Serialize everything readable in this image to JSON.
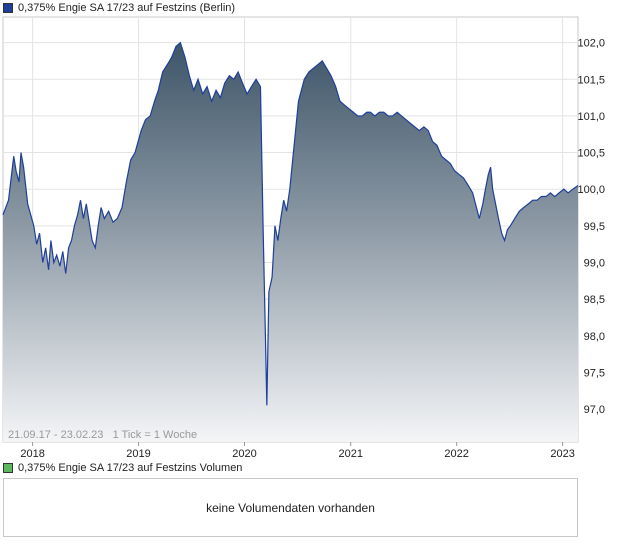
{
  "legend_main": {
    "label": "0,375% Engie SA 17/23 auf Festzins (Berlin)",
    "color": "#1f3f9a"
  },
  "legend_volume": {
    "label": "0,375% Engie SA 17/23 auf Festzins Volumen",
    "color": "#5cb85c"
  },
  "info_text": "21.09.17 - 23.02.23   1 Tick = 1 Woche",
  "volume_message": "keine Volumendaten vorhanden",
  "chart_data": {
    "type": "area",
    "title": "0,375% Engie SA 17/23 auf Festzins (Berlin)",
    "x_start": "2017-09-21",
    "x_end": "2023-02-23",
    "x_ticks": [
      {
        "label": "2018",
        "date": "2018-01-01"
      },
      {
        "label": "2019",
        "date": "2019-01-01"
      },
      {
        "label": "2020",
        "date": "2020-01-01"
      },
      {
        "label": "2021",
        "date": "2021-01-01"
      },
      {
        "label": "2022",
        "date": "2022-01-01"
      },
      {
        "label": "2023",
        "date": "2023-01-01"
      }
    ],
    "y_ticks": [
      "97,0",
      "97,5",
      "98,0",
      "98,5",
      "99,0",
      "99,5",
      "100,0",
      "100,5",
      "101,0",
      "101,5",
      "102,0"
    ],
    "ylim": [
      96.55,
      102.35
    ],
    "grid": true,
    "line_color": "#1f3f9a",
    "series": [
      {
        "points": [
          [
            "2017-09-21",
            99.65
          ],
          [
            "2017-10-10",
            99.85
          ],
          [
            "2017-10-28",
            100.45
          ],
          [
            "2017-11-05",
            100.25
          ],
          [
            "2017-11-15",
            100.1
          ],
          [
            "2017-11-22",
            100.5
          ],
          [
            "2017-12-01",
            100.3
          ],
          [
            "2017-12-15",
            99.8
          ],
          [
            "2018-01-05",
            99.5
          ],
          [
            "2018-01-15",
            99.25
          ],
          [
            "2018-01-25",
            99.4
          ],
          [
            "2018-02-05",
            99.0
          ],
          [
            "2018-02-15",
            99.2
          ],
          [
            "2018-02-25",
            98.9
          ],
          [
            "2018-03-05",
            99.3
          ],
          [
            "2018-03-15",
            99.0
          ],
          [
            "2018-03-25",
            99.1
          ],
          [
            "2018-04-05",
            98.95
          ],
          [
            "2018-04-15",
            99.15
          ],
          [
            "2018-04-25",
            98.85
          ],
          [
            "2018-05-05",
            99.2
          ],
          [
            "2018-05-15",
            99.3
          ],
          [
            "2018-05-25",
            99.5
          ],
          [
            "2018-06-05",
            99.65
          ],
          [
            "2018-06-15",
            99.85
          ],
          [
            "2018-06-25",
            99.6
          ],
          [
            "2018-07-05",
            99.8
          ],
          [
            "2018-07-15",
            99.55
          ],
          [
            "2018-07-25",
            99.3
          ],
          [
            "2018-08-05",
            99.2
          ],
          [
            "2018-08-15",
            99.5
          ],
          [
            "2018-08-25",
            99.75
          ],
          [
            "2018-09-05",
            99.6
          ],
          [
            "2018-09-20",
            99.7
          ],
          [
            "2018-10-05",
            99.55
          ],
          [
            "2018-10-20",
            99.6
          ],
          [
            "2018-11-05",
            99.75
          ],
          [
            "2018-11-20",
            100.1
          ],
          [
            "2018-12-05",
            100.4
          ],
          [
            "2018-12-20",
            100.5
          ],
          [
            "2019-01-10",
            100.8
          ],
          [
            "2019-01-25",
            100.95
          ],
          [
            "2019-02-10",
            101.0
          ],
          [
            "2019-02-25",
            101.2
          ],
          [
            "2019-03-10",
            101.35
          ],
          [
            "2019-03-25",
            101.6
          ],
          [
            "2019-04-10",
            101.7
          ],
          [
            "2019-04-25",
            101.8
          ],
          [
            "2019-05-10",
            101.95
          ],
          [
            "2019-05-25",
            102.0
          ],
          [
            "2019-06-10",
            101.8
          ],
          [
            "2019-06-25",
            101.55
          ],
          [
            "2019-07-10",
            101.35
          ],
          [
            "2019-07-25",
            101.5
          ],
          [
            "2019-08-10",
            101.3
          ],
          [
            "2019-08-25",
            101.4
          ],
          [
            "2019-09-10",
            101.2
          ],
          [
            "2019-09-25",
            101.35
          ],
          [
            "2019-10-10",
            101.25
          ],
          [
            "2019-10-25",
            101.45
          ],
          [
            "2019-11-10",
            101.55
          ],
          [
            "2019-11-25",
            101.5
          ],
          [
            "2019-12-10",
            101.6
          ],
          [
            "2019-12-25",
            101.45
          ],
          [
            "2020-01-10",
            101.3
          ],
          [
            "2020-01-25",
            101.4
          ],
          [
            "2020-02-10",
            101.5
          ],
          [
            "2020-02-25",
            101.4
          ],
          [
            "2020-03-05",
            99.5
          ],
          [
            "2020-03-12",
            98.2
          ],
          [
            "2020-03-18",
            97.05
          ],
          [
            "2020-03-25",
            98.6
          ],
          [
            "2020-04-05",
            98.8
          ],
          [
            "2020-04-15",
            99.5
          ],
          [
            "2020-04-25",
            99.3
          ],
          [
            "2020-05-05",
            99.6
          ],
          [
            "2020-05-15",
            99.85
          ],
          [
            "2020-05-25",
            99.7
          ],
          [
            "2020-06-05",
            100.0
          ],
          [
            "2020-06-20",
            100.6
          ],
          [
            "2020-07-05",
            101.2
          ],
          [
            "2020-07-25",
            101.5
          ],
          [
            "2020-08-10",
            101.6
          ],
          [
            "2020-08-25",
            101.65
          ],
          [
            "2020-09-10",
            101.7
          ],
          [
            "2020-09-25",
            101.75
          ],
          [
            "2020-10-10",
            101.65
          ],
          [
            "2020-10-25",
            101.55
          ],
          [
            "2020-11-10",
            101.4
          ],
          [
            "2020-11-25",
            101.2
          ],
          [
            "2020-12-10",
            101.15
          ],
          [
            "2020-12-25",
            101.1
          ],
          [
            "2021-01-10",
            101.05
          ],
          [
            "2021-01-25",
            101.0
          ],
          [
            "2021-02-10",
            101.0
          ],
          [
            "2021-02-25",
            101.05
          ],
          [
            "2021-03-10",
            101.05
          ],
          [
            "2021-03-25",
            101.0
          ],
          [
            "2021-04-10",
            101.05
          ],
          [
            "2021-04-25",
            101.05
          ],
          [
            "2021-05-10",
            101.0
          ],
          [
            "2021-05-25",
            101.0
          ],
          [
            "2021-06-10",
            101.05
          ],
          [
            "2021-06-25",
            101.0
          ],
          [
            "2021-07-10",
            100.95
          ],
          [
            "2021-07-25",
            100.9
          ],
          [
            "2021-08-10",
            100.85
          ],
          [
            "2021-08-25",
            100.8
          ],
          [
            "2021-09-10",
            100.85
          ],
          [
            "2021-09-25",
            100.8
          ],
          [
            "2021-10-10",
            100.65
          ],
          [
            "2021-10-25",
            100.6
          ],
          [
            "2021-11-10",
            100.45
          ],
          [
            "2021-11-25",
            100.4
          ],
          [
            "2021-12-10",
            100.35
          ],
          [
            "2021-12-25",
            100.25
          ],
          [
            "2022-01-10",
            100.2
          ],
          [
            "2022-01-25",
            100.15
          ],
          [
            "2022-02-10",
            100.05
          ],
          [
            "2022-02-25",
            99.95
          ],
          [
            "2022-03-10",
            99.75
          ],
          [
            "2022-03-20",
            99.6
          ],
          [
            "2022-04-01",
            99.8
          ],
          [
            "2022-04-10",
            100.0
          ],
          [
            "2022-04-20",
            100.2
          ],
          [
            "2022-04-28",
            100.3
          ],
          [
            "2022-05-05",
            100.0
          ],
          [
            "2022-05-15",
            99.8
          ],
          [
            "2022-05-25",
            99.6
          ],
          [
            "2022-06-05",
            99.4
          ],
          [
            "2022-06-15",
            99.3
          ],
          [
            "2022-06-25",
            99.45
          ],
          [
            "2022-07-05",
            99.5
          ],
          [
            "2022-07-20",
            99.6
          ],
          [
            "2022-08-05",
            99.7
          ],
          [
            "2022-08-20",
            99.75
          ],
          [
            "2022-09-05",
            99.8
          ],
          [
            "2022-09-20",
            99.85
          ],
          [
            "2022-10-05",
            99.85
          ],
          [
            "2022-10-20",
            99.9
          ],
          [
            "2022-11-05",
            99.9
          ],
          [
            "2022-11-20",
            99.95
          ],
          [
            "2022-12-05",
            99.9
          ],
          [
            "2022-12-20",
            99.95
          ],
          [
            "2023-01-05",
            100.0
          ],
          [
            "2023-01-20",
            99.95
          ],
          [
            "2023-02-05",
            100.0
          ],
          [
            "2023-02-23",
            100.05
          ]
        ]
      }
    ]
  }
}
